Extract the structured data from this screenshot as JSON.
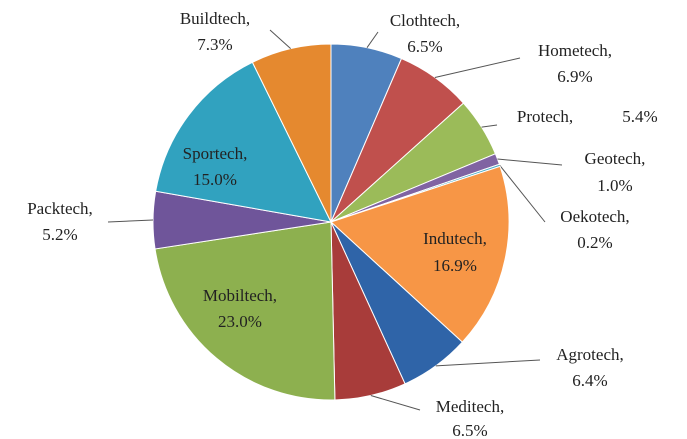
{
  "chart_data": {
    "type": "pie",
    "categories": [
      "Clothtech,",
      "Hometech,",
      "Protech,",
      "Geotech,",
      "Oekotech,",
      "Indutech,",
      "Agrotech,",
      "Meditech,",
      "Mobiltech,",
      "Packtech,",
      "Sportech,",
      "Buildtech,"
    ],
    "values": [
      6.5,
      6.9,
      5.4,
      1.0,
      0.2,
      16.9,
      6.4,
      6.5,
      23.0,
      5.2,
      15.0,
      7.3
    ],
    "value_labels": [
      "6.5%",
      "6.9%",
      "5.4%",
      "1.0%",
      "0.2%",
      "16.9%",
      "6.4%",
      "6.5%",
      "23.0%",
      "5.2%",
      "15.0%",
      "7.3%"
    ],
    "colors": [
      "#4f81bd",
      "#c0504d",
      "#9bbb59",
      "#8064a2",
      "#4bacc6",
      "#f79646",
      "#2f64a8",
      "#a83c3a",
      "#8db04f",
      "#6f559a",
      "#31a2bf",
      "#e5892f"
    ]
  }
}
